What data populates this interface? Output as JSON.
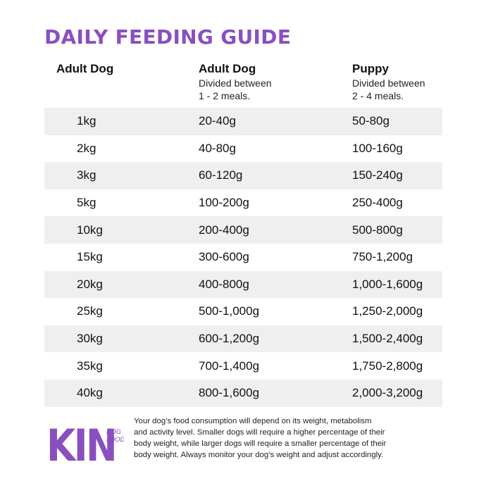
{
  "title": "DAILY FEEDING GUIDE",
  "headers": {
    "col1": "Adult Dog",
    "col2": {
      "label": "Adult Dog",
      "sub1": "Divided between",
      "sub2": "1 - 2 meals."
    },
    "col3": {
      "label": "Puppy",
      "sub1": "Divided between",
      "sub2": "2 - 4 meals."
    }
  },
  "rows": [
    {
      "weight": "1kg",
      "adult": "20-40g",
      "puppy": "50-80g"
    },
    {
      "weight": "2kg",
      "adult": "40-80g",
      "puppy": "100-160g"
    },
    {
      "weight": "3kg",
      "adult": "60-120g",
      "puppy": "150-240g"
    },
    {
      "weight": "5kg",
      "adult": "100-200g",
      "puppy": "250-400g"
    },
    {
      "weight": "10kg",
      "adult": "200-400g",
      "puppy": "500-800g"
    },
    {
      "weight": "15kg",
      "adult": "300-600g",
      "puppy": "750-1,200g"
    },
    {
      "weight": "20kg",
      "adult": "400-800g",
      "puppy": "1,000-1,600g"
    },
    {
      "weight": "25kg",
      "adult": "500-1,000g",
      "puppy": "1,250-2,000g"
    },
    {
      "weight": "30kg",
      "adult": "600-1,200g",
      "puppy": "1,500-2,400g"
    },
    {
      "weight": "35kg",
      "adult": "700-1,400g",
      "puppy": "1,750-2,800g"
    },
    {
      "weight": "40kg",
      "adult": "800-1,600g",
      "puppy": "2,000-3,200g"
    }
  ],
  "logo": {
    "main": "KIN",
    "sub1": "DOG",
    "sub2": "FOOD",
    "color": "#8a4fbf"
  },
  "footer": {
    "line1": "Your dog’s food consumption will depend on its weight, metabolism",
    "line2": "and activity level.  Smaller dogs will require a higher percentage of their",
    "line3": "body weight, while larger dogs will require a smaller percentage of their",
    "line4": "body weight. Always monitor your dog’s weight and adjust accordingly."
  },
  "colors": {
    "accent": "#8a4fbf",
    "row_shade": "#efefef"
  }
}
